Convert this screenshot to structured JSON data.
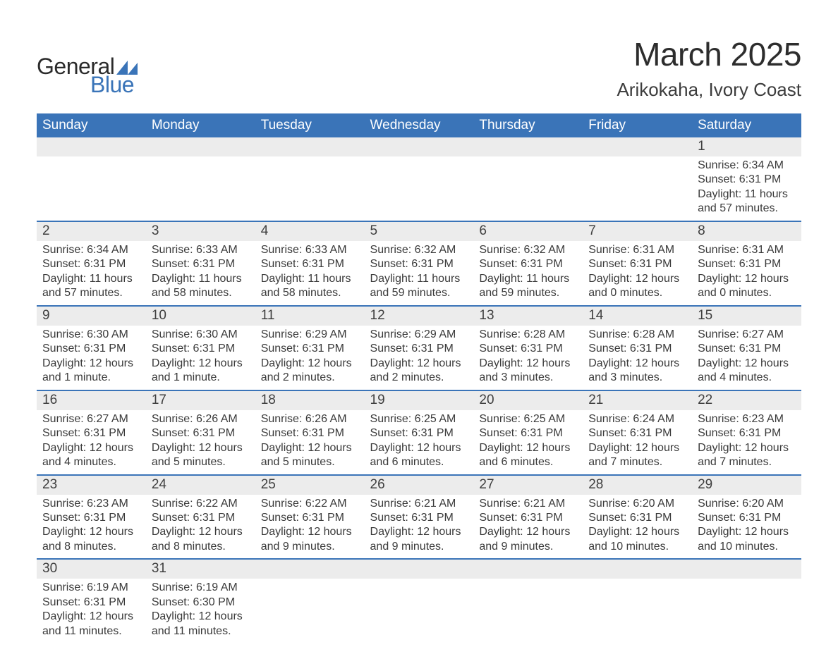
{
  "logo": {
    "text1": "General",
    "text2": "Blue",
    "tri_color": "#3a74b8",
    "text1_color": "#2b2b2b"
  },
  "header": {
    "month_title": "March 2025",
    "location": "Arikokaha, Ivory Coast"
  },
  "calendar": {
    "header_bg": "#3a74b8",
    "header_fg": "#ffffff",
    "row_border_color": "#3a74b8",
    "daynum_bg": "#ececec",
    "text_color": "#3a3a3a",
    "font_size_header": 19,
    "font_size_daynum": 19,
    "font_size_detail": 16,
    "columns": [
      "Sunday",
      "Monday",
      "Tuesday",
      "Wednesday",
      "Thursday",
      "Friday",
      "Saturday"
    ],
    "weeks": [
      [
        null,
        null,
        null,
        null,
        null,
        null,
        {
          "n": "1",
          "sunrise": "Sunrise: 6:34 AM",
          "sunset": "Sunset: 6:31 PM",
          "day1": "Daylight: 11 hours",
          "day2": "and 57 minutes."
        }
      ],
      [
        {
          "n": "2",
          "sunrise": "Sunrise: 6:34 AM",
          "sunset": "Sunset: 6:31 PM",
          "day1": "Daylight: 11 hours",
          "day2": "and 57 minutes."
        },
        {
          "n": "3",
          "sunrise": "Sunrise: 6:33 AM",
          "sunset": "Sunset: 6:31 PM",
          "day1": "Daylight: 11 hours",
          "day2": "and 58 minutes."
        },
        {
          "n": "4",
          "sunrise": "Sunrise: 6:33 AM",
          "sunset": "Sunset: 6:31 PM",
          "day1": "Daylight: 11 hours",
          "day2": "and 58 minutes."
        },
        {
          "n": "5",
          "sunrise": "Sunrise: 6:32 AM",
          "sunset": "Sunset: 6:31 PM",
          "day1": "Daylight: 11 hours",
          "day2": "and 59 minutes."
        },
        {
          "n": "6",
          "sunrise": "Sunrise: 6:32 AM",
          "sunset": "Sunset: 6:31 PM",
          "day1": "Daylight: 11 hours",
          "day2": "and 59 minutes."
        },
        {
          "n": "7",
          "sunrise": "Sunrise: 6:31 AM",
          "sunset": "Sunset: 6:31 PM",
          "day1": "Daylight: 12 hours",
          "day2": "and 0 minutes."
        },
        {
          "n": "8",
          "sunrise": "Sunrise: 6:31 AM",
          "sunset": "Sunset: 6:31 PM",
          "day1": "Daylight: 12 hours",
          "day2": "and 0 minutes."
        }
      ],
      [
        {
          "n": "9",
          "sunrise": "Sunrise: 6:30 AM",
          "sunset": "Sunset: 6:31 PM",
          "day1": "Daylight: 12 hours",
          "day2": "and 1 minute."
        },
        {
          "n": "10",
          "sunrise": "Sunrise: 6:30 AM",
          "sunset": "Sunset: 6:31 PM",
          "day1": "Daylight: 12 hours",
          "day2": "and 1 minute."
        },
        {
          "n": "11",
          "sunrise": "Sunrise: 6:29 AM",
          "sunset": "Sunset: 6:31 PM",
          "day1": "Daylight: 12 hours",
          "day2": "and 2 minutes."
        },
        {
          "n": "12",
          "sunrise": "Sunrise: 6:29 AM",
          "sunset": "Sunset: 6:31 PM",
          "day1": "Daylight: 12 hours",
          "day2": "and 2 minutes."
        },
        {
          "n": "13",
          "sunrise": "Sunrise: 6:28 AM",
          "sunset": "Sunset: 6:31 PM",
          "day1": "Daylight: 12 hours",
          "day2": "and 3 minutes."
        },
        {
          "n": "14",
          "sunrise": "Sunrise: 6:28 AM",
          "sunset": "Sunset: 6:31 PM",
          "day1": "Daylight: 12 hours",
          "day2": "and 3 minutes."
        },
        {
          "n": "15",
          "sunrise": "Sunrise: 6:27 AM",
          "sunset": "Sunset: 6:31 PM",
          "day1": "Daylight: 12 hours",
          "day2": "and 4 minutes."
        }
      ],
      [
        {
          "n": "16",
          "sunrise": "Sunrise: 6:27 AM",
          "sunset": "Sunset: 6:31 PM",
          "day1": "Daylight: 12 hours",
          "day2": "and 4 minutes."
        },
        {
          "n": "17",
          "sunrise": "Sunrise: 6:26 AM",
          "sunset": "Sunset: 6:31 PM",
          "day1": "Daylight: 12 hours",
          "day2": "and 5 minutes."
        },
        {
          "n": "18",
          "sunrise": "Sunrise: 6:26 AM",
          "sunset": "Sunset: 6:31 PM",
          "day1": "Daylight: 12 hours",
          "day2": "and 5 minutes."
        },
        {
          "n": "19",
          "sunrise": "Sunrise: 6:25 AM",
          "sunset": "Sunset: 6:31 PM",
          "day1": "Daylight: 12 hours",
          "day2": "and 6 minutes."
        },
        {
          "n": "20",
          "sunrise": "Sunrise: 6:25 AM",
          "sunset": "Sunset: 6:31 PM",
          "day1": "Daylight: 12 hours",
          "day2": "and 6 minutes."
        },
        {
          "n": "21",
          "sunrise": "Sunrise: 6:24 AM",
          "sunset": "Sunset: 6:31 PM",
          "day1": "Daylight: 12 hours",
          "day2": "and 7 minutes."
        },
        {
          "n": "22",
          "sunrise": "Sunrise: 6:23 AM",
          "sunset": "Sunset: 6:31 PM",
          "day1": "Daylight: 12 hours",
          "day2": "and 7 minutes."
        }
      ],
      [
        {
          "n": "23",
          "sunrise": "Sunrise: 6:23 AM",
          "sunset": "Sunset: 6:31 PM",
          "day1": "Daylight: 12 hours",
          "day2": "and 8 minutes."
        },
        {
          "n": "24",
          "sunrise": "Sunrise: 6:22 AM",
          "sunset": "Sunset: 6:31 PM",
          "day1": "Daylight: 12 hours",
          "day2": "and 8 minutes."
        },
        {
          "n": "25",
          "sunrise": "Sunrise: 6:22 AM",
          "sunset": "Sunset: 6:31 PM",
          "day1": "Daylight: 12 hours",
          "day2": "and 9 minutes."
        },
        {
          "n": "26",
          "sunrise": "Sunrise: 6:21 AM",
          "sunset": "Sunset: 6:31 PM",
          "day1": "Daylight: 12 hours",
          "day2": "and 9 minutes."
        },
        {
          "n": "27",
          "sunrise": "Sunrise: 6:21 AM",
          "sunset": "Sunset: 6:31 PM",
          "day1": "Daylight: 12 hours",
          "day2": "and 9 minutes."
        },
        {
          "n": "28",
          "sunrise": "Sunrise: 6:20 AM",
          "sunset": "Sunset: 6:31 PM",
          "day1": "Daylight: 12 hours",
          "day2": "and 10 minutes."
        },
        {
          "n": "29",
          "sunrise": "Sunrise: 6:20 AM",
          "sunset": "Sunset: 6:31 PM",
          "day1": "Daylight: 12 hours",
          "day2": "and 10 minutes."
        }
      ],
      [
        {
          "n": "30",
          "sunrise": "Sunrise: 6:19 AM",
          "sunset": "Sunset: 6:31 PM",
          "day1": "Daylight: 12 hours",
          "day2": "and 11 minutes."
        },
        {
          "n": "31",
          "sunrise": "Sunrise: 6:19 AM",
          "sunset": "Sunset: 6:30 PM",
          "day1": "Daylight: 12 hours",
          "day2": "and 11 minutes."
        },
        null,
        null,
        null,
        null,
        null
      ]
    ]
  }
}
